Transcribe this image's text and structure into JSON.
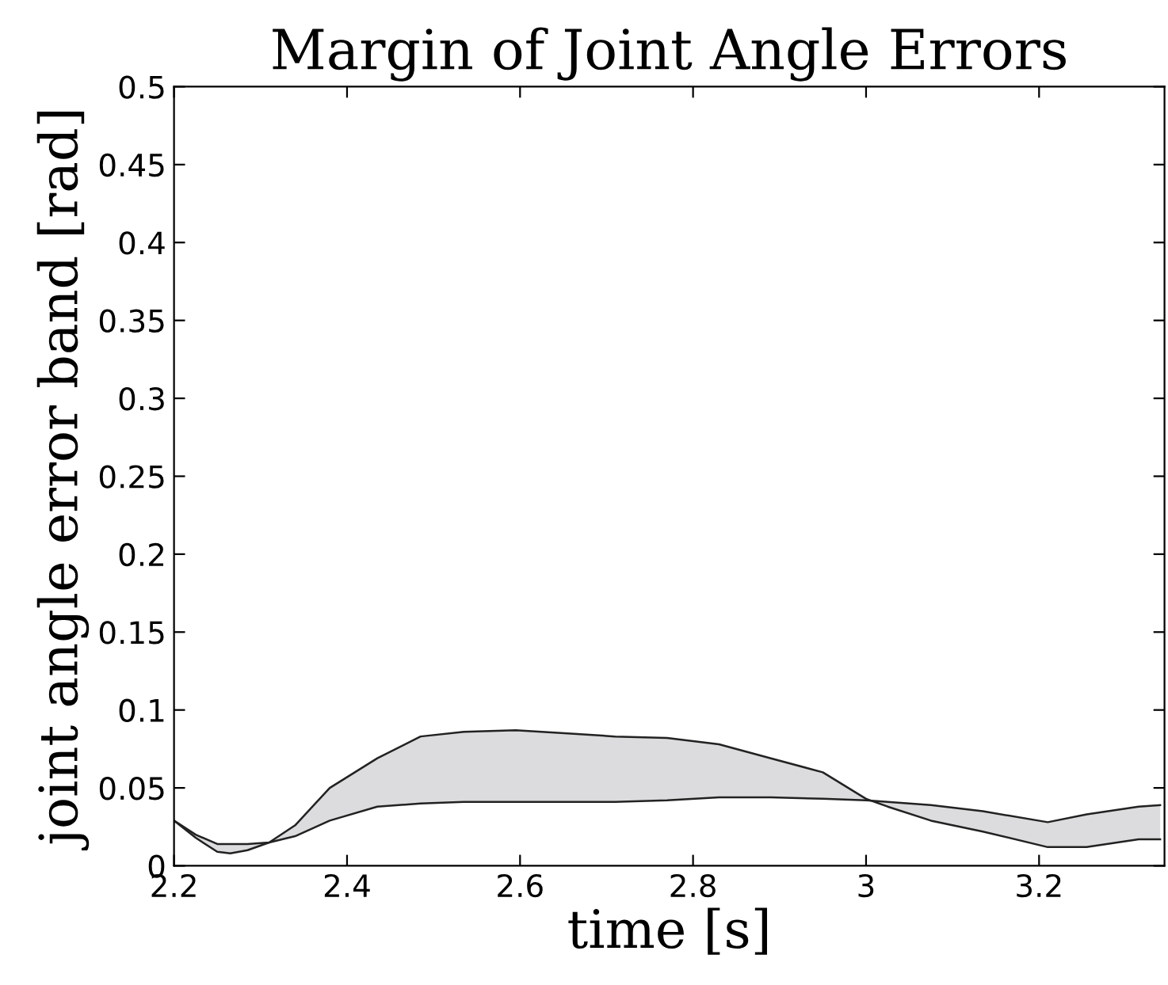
{
  "chart_data": {
    "type": "line",
    "title": "Margin of Joint Angle Errors",
    "xlabel": "time [s]",
    "ylabel": "joint angle error band [rad]",
    "x": [
      2.2,
      2.225,
      2.25,
      2.265,
      2.285,
      2.31,
      2.34,
      2.38,
      2.435,
      2.485,
      2.535,
      2.595,
      2.655,
      2.71,
      2.77,
      2.83,
      2.89,
      2.95,
      3.0,
      3.025,
      3.075,
      3.135,
      3.21,
      3.255,
      3.315,
      3.34
    ],
    "series": [
      {
        "color": "#222222",
        "values": [
          0.029,
          0.018,
          0.009,
          0.008,
          0.01,
          0.015,
          0.026,
          0.05,
          0.069,
          0.083,
          0.086,
          0.087,
          0.085,
          0.083,
          0.082,
          0.078,
          0.069,
          0.06,
          0.043,
          0.038,
          0.029,
          0.022,
          0.012,
          0.012,
          0.017,
          0.017
        ]
      },
      {
        "color": "#222222",
        "values": [
          0.029,
          0.02,
          0.014,
          0.014,
          0.014,
          0.015,
          0.019,
          0.029,
          0.038,
          0.04,
          0.041,
          0.041,
          0.041,
          0.041,
          0.042,
          0.044,
          0.044,
          0.043,
          0.042,
          0.041,
          0.039,
          0.035,
          0.028,
          0.033,
          0.038,
          0.039
        ],
        "lower": [
          0.029,
          0.018,
          0.009,
          0.008,
          0.01,
          0.015,
          0.026,
          0.05,
          0.069,
          0.083,
          0.086,
          0.087,
          0.085,
          0.083,
          0.082,
          0.078,
          0.069,
          0.06,
          0.043,
          0.038,
          0.029,
          0.022,
          0.012,
          0.012,
          0.017,
          0.017
        ],
        "upper": [
          0.029,
          0.02,
          0.014,
          0.014,
          0.014,
          0.015,
          0.019,
          0.029,
          0.038,
          0.04,
          0.041,
          0.041,
          0.041,
          0.041,
          0.042,
          0.044,
          0.044,
          0.043,
          0.042,
          0.041,
          0.039,
          0.035,
          0.028,
          0.033,
          0.038,
          0.039
        ]
      }
    ],
    "xlim": [
      2.2,
      3.345
    ],
    "ylim": [
      0,
      0.5
    ],
    "xticks": [
      2.2,
      2.4,
      2.6,
      2.8,
      3,
      3.2
    ],
    "yticks": [
      0,
      0.05,
      0.1,
      0.15,
      0.2,
      0.25,
      0.3,
      0.35,
      0.4,
      0.45,
      0.5
    ],
    "grid": false,
    "legend": false
  }
}
